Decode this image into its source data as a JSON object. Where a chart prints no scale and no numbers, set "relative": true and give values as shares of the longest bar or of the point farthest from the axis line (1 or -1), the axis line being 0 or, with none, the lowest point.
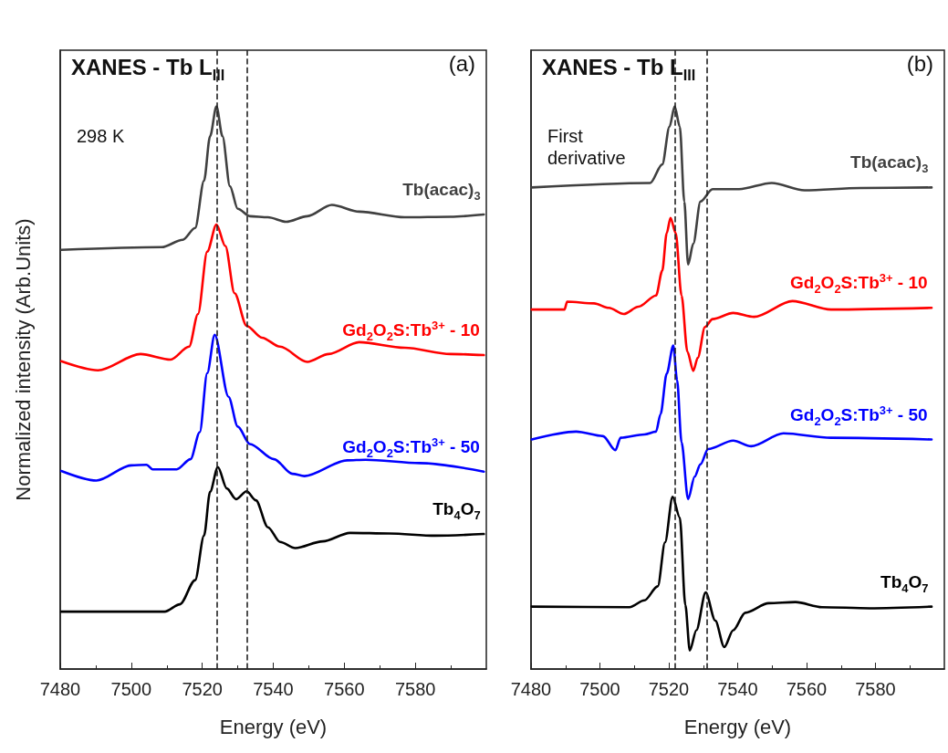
{
  "chart_data": [
    {
      "type": "line",
      "title": "XANES - Tb L$_{III}$",
      "xlabel": "Energy (eV)",
      "ylabel": "Normalized intensity (Arb.Units)",
      "annotations": [
        "(a)",
        "298 K"
      ],
      "relative": true,
      "xlim": [
        7480,
        7600
      ],
      "xticks": [
        7480,
        7500,
        7520,
        7540,
        7560,
        7580
      ],
      "grid": false,
      "legend": false,
      "marker": "none",
      "line_style": "solid",
      "ref_lines": [
        {
          "axis": "x",
          "value": 7524.2,
          "color": "#222222",
          "line_style": "dashed"
        },
        {
          "axis": "x",
          "value": 7532.5,
          "color": "#222222",
          "line_style": "dashed"
        }
      ],
      "series": [
        {
          "name": "Tb(acac)$_{3}$",
          "color": "#404040",
          "x": [
            7480.3,
            7508.6,
            7514.5,
            7518,
            7520.5,
            7522.2,
            7524,
            7525.7,
            7527.8,
            7530,
            7533.4,
            7538.5,
            7543.6,
            7549.6,
            7556.5,
            7564.2,
            7577,
            7589.9,
            7599.3
          ],
          "values": [
            0.745,
            0.75,
            0.763,
            0.784,
            0.868,
            0.947,
            1.0,
            0.947,
            0.858,
            0.818,
            0.805,
            0.803,
            0.795,
            0.805,
            0.825,
            0.813,
            0.803,
            0.804,
            0.808
          ]
        },
        {
          "name": "Gd$_{2}$O$_{2}$S:Tb$^{3+}$ - 10",
          "color": "#ff0000",
          "x": [
            7480.3,
            7490.6,
            7502.6,
            7511.1,
            7516.3,
            7518.8,
            7521.4,
            7524,
            7526.5,
            7529.1,
            7532.5,
            7536.8,
            7541.9,
            7549.6,
            7555.6,
            7564.2,
            7577,
            7589.9,
            7599.3
          ],
          "values": [
            0.547,
            0.531,
            0.56,
            0.55,
            0.573,
            0.631,
            0.742,
            0.79,
            0.752,
            0.668,
            0.61,
            0.589,
            0.573,
            0.546,
            0.56,
            0.581,
            0.571,
            0.56,
            0.558
          ]
        },
        {
          "name": "Gd$_{2}$O$_{2}$S:Tb$^{3+}$ - 50",
          "color": "#0000ff",
          "x": [
            7480.3,
            7490.2,
            7500,
            7504.3,
            7506,
            7512.8,
            7516.7,
            7519.3,
            7521.4,
            7523.5,
            7527.4,
            7530,
            7533.4,
            7540.2,
            7545.4,
            7548.8,
            7560.8,
            7566,
            7581.3,
            7599.3
          ],
          "values": [
            0.352,
            0.335,
            0.362,
            0.363,
            0.355,
            0.355,
            0.373,
            0.421,
            0.526,
            0.594,
            0.484,
            0.431,
            0.4,
            0.373,
            0.347,
            0.343,
            0.371,
            0.372,
            0.366,
            0.351
          ]
        },
        {
          "name": "Tb$_{4}$O$_{7}$",
          "color": "#000000",
          "x": [
            7480.3,
            7509.4,
            7513.7,
            7518,
            7520.5,
            7522.2,
            7524.4,
            7526.9,
            7529.5,
            7532.5,
            7535.1,
            7538.5,
            7541.9,
            7546.2,
            7553.9,
            7561.6,
            7572.7,
            7585.6,
            7599.3
          ],
          "values": [
            0.102,
            0.102,
            0.115,
            0.158,
            0.237,
            0.315,
            0.359,
            0.321,
            0.302,
            0.316,
            0.3,
            0.252,
            0.226,
            0.215,
            0.227,
            0.242,
            0.241,
            0.237,
            0.24
          ]
        }
      ]
    },
    {
      "type": "line",
      "title": "XANES - Tb L$_{III}$",
      "xlabel": "Energy (eV)",
      "annotations": [
        "(b)",
        "First derivative"
      ],
      "relative": true,
      "xlim": [
        7480,
        7600
      ],
      "xticks": [
        7480,
        7500,
        7520,
        7540,
        7560,
        7580
      ],
      "grid": false,
      "legend": false,
      "marker": "none",
      "line_style": "solid",
      "ref_lines": [
        {
          "axis": "x",
          "value": 7521.7,
          "color": "#222222",
          "line_style": "dashed"
        },
        {
          "axis": "x",
          "value": 7531.0,
          "color": "#222222",
          "line_style": "dashed"
        }
      ],
      "series": [
        {
          "name": "Tb(acac)$_{3}$",
          "color": "#404040",
          "x": [
            7480.2,
            7514.6,
            7518.1,
            7520.2,
            7521.7,
            7523.2,
            7524.5,
            7525.6,
            7527.1,
            7529.2,
            7532.7,
            7540.4,
            7549.9,
            7559.4,
            7575.7,
            7596.3
          ],
          "values": [
            0.856,
            0.864,
            0.897,
            0.964,
            1.0,
            0.964,
            0.831,
            0.719,
            0.756,
            0.831,
            0.853,
            0.853,
            0.864,
            0.851,
            0.855,
            0.856
          ]
        },
        {
          "name": "Gd$_{2}$O$_{2}$S:Tb$^{3+}$ - 10",
          "color": "#ff0000",
          "x": [
            7480.2,
            7489.7,
            7490.5,
            7498.3,
            7502.6,
            7506.9,
            7511.2,
            7516.3,
            7518.1,
            7519.4,
            7520.5,
            7522,
            7523.7,
            7525.4,
            7527.1,
            7528.4,
            7530.5,
            7532.7,
            7538.7,
            7544.7,
            7555.9,
            7567.1,
            7596.3
          ],
          "values": [
            0.639,
            0.639,
            0.653,
            0.65,
            0.642,
            0.631,
            0.644,
            0.664,
            0.708,
            0.775,
            0.802,
            0.775,
            0.664,
            0.564,
            0.53,
            0.553,
            0.608,
            0.622,
            0.633,
            0.626,
            0.654,
            0.639,
            0.642
          ]
        },
        {
          "name": "Gd$_{2}$O$_{2}$S:Tb$^{3+}$ - 50",
          "color": "#0000ff",
          "x": [
            7480.2,
            7493.1,
            7500.9,
            7504.5,
            7506,
            7512.9,
            7516.3,
            7517.6,
            7519.4,
            7521.3,
            7522.4,
            7523.7,
            7525.6,
            7527.5,
            7529.2,
            7531.4,
            7538.7,
            7543.9,
            7553.3,
            7567.1,
            7596.3
          ],
          "values": [
            0.408,
            0.422,
            0.414,
            0.389,
            0.411,
            0.417,
            0.422,
            0.453,
            0.525,
            0.575,
            0.514,
            0.403,
            0.302,
            0.342,
            0.364,
            0.391,
            0.406,
            0.396,
            0.419,
            0.411,
            0.408
          ]
        },
        {
          "name": "Tb$_{4}$O$_{7}$",
          "color": "#000000",
          "x": [
            7480.2,
            7508.6,
            7512.9,
            7516.8,
            7518.9,
            7521.1,
            7523.2,
            7524.8,
            7526.1,
            7528,
            7530.7,
            7533.5,
            7536.1,
            7538.7,
            7542.2,
            7549,
            7556.8,
            7564.5,
            7578.3,
            7596.3
          ],
          "values": [
            0.111,
            0.11,
            0.122,
            0.147,
            0.225,
            0.306,
            0.269,
            0.114,
            0.033,
            0.069,
            0.136,
            0.086,
            0.039,
            0.069,
            0.1,
            0.117,
            0.119,
            0.11,
            0.108,
            0.111
          ]
        }
      ]
    }
  ]
}
